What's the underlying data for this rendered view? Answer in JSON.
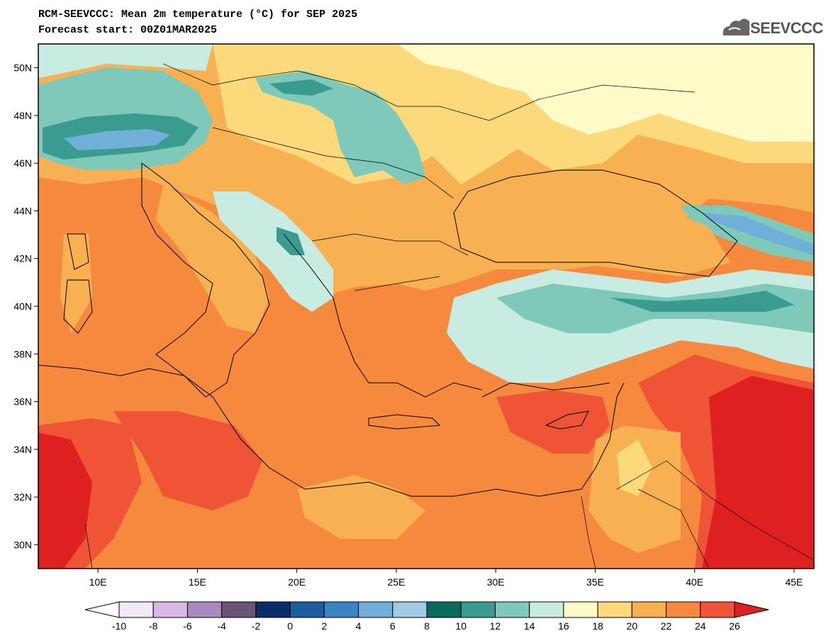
{
  "header": {
    "title": "RCM-SEEVCCC: Mean 2m temperature (°C) for SEP 2025",
    "subtitle": "Forecast start: 00Z01MAR2025",
    "logo_text": "SEEVCCC"
  },
  "map": {
    "lon_range": [
      7,
      46
    ],
    "lat_range": [
      29,
      51
    ],
    "lat_ticks": [
      "30N",
      "32N",
      "34N",
      "36N",
      "38N",
      "40N",
      "42N",
      "44N",
      "46N",
      "48N",
      "50N"
    ],
    "lon_ticks": [
      "10E",
      "15E",
      "20E",
      "25E",
      "30E",
      "35E",
      "40E",
      "45E"
    ]
  },
  "colorbar": {
    "labels": [
      "-10",
      "-8",
      "-6",
      "-4",
      "-2",
      "0",
      "2",
      "4",
      "6",
      "8",
      "10",
      "12",
      "14",
      "16",
      "18",
      "20",
      "22",
      "24",
      "26"
    ],
    "colors": [
      "#f1e9f6",
      "#d9b8e6",
      "#a88abf",
      "#6b5377",
      "#0c2c6a",
      "#1f5e9e",
      "#3b84c2",
      "#6fafd8",
      "#9fcbe4",
      "#0a6b5c",
      "#3a9c8e",
      "#7ec9b9",
      "#c8ece2",
      "#fffbc8",
      "#fcd97a",
      "#f8b152",
      "#f5893d",
      "#ee5435"
    ],
    "under_color": "#ffffff",
    "over_color": "#df2020"
  }
}
